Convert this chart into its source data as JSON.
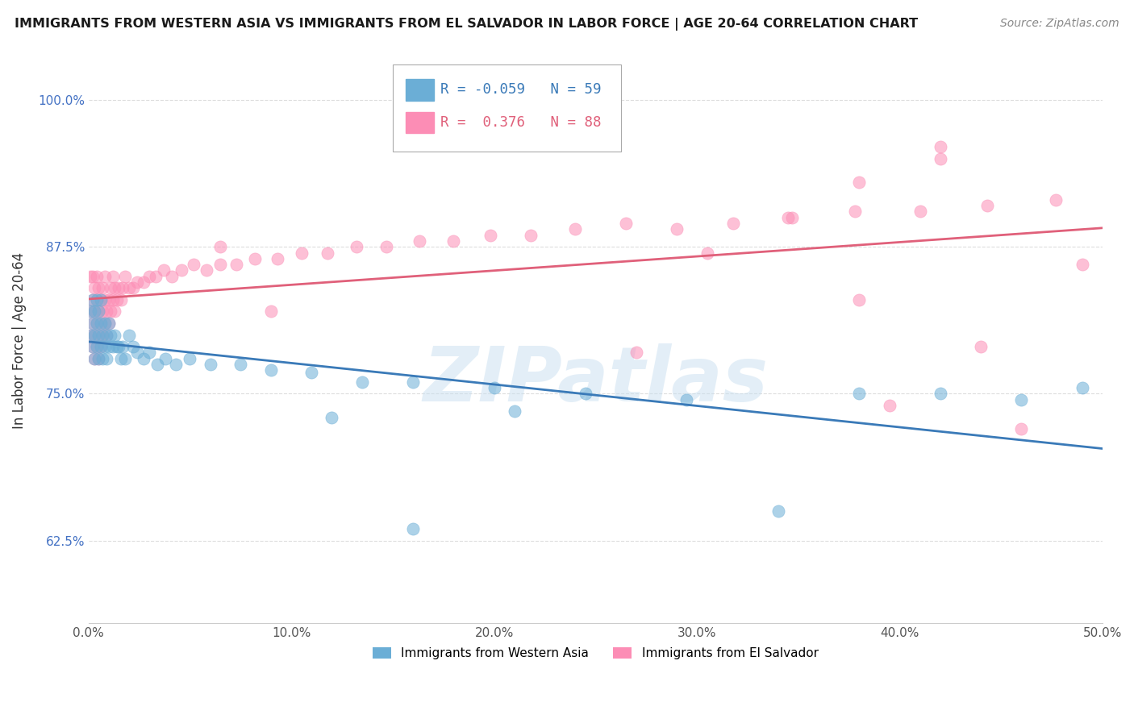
{
  "title": "IMMIGRANTS FROM WESTERN ASIA VS IMMIGRANTS FROM EL SALVADOR IN LABOR FORCE | AGE 20-64 CORRELATION CHART",
  "source": "Source: ZipAtlas.com",
  "ylabel": "In Labor Force | Age 20-64",
  "xlim": [
    0.0,
    0.5
  ],
  "ylim": [
    0.555,
    1.035
  ],
  "yticks": [
    0.625,
    0.75,
    0.875,
    1.0
  ],
  "ytick_labels": [
    "62.5%",
    "75.0%",
    "87.5%",
    "100.0%"
  ],
  "xticks": [
    0.0,
    0.1,
    0.2,
    0.3,
    0.4,
    0.5
  ],
  "xtick_labels": [
    "0.0%",
    "10.0%",
    "20.0%",
    "30.0%",
    "40.0%",
    "50.0%"
  ],
  "R_western_asia": -0.059,
  "N_western_asia": 59,
  "R_el_salvador": 0.376,
  "N_el_salvador": 88,
  "color_western_asia": "#6baed6",
  "color_el_salvador": "#fc8db5",
  "watermark": "ZIPatlas",
  "background_color": "#ffffff",
  "grid_color": "#dddddd",
  "wa_line_color": "#3a7ab8",
  "es_line_color": "#e0607a",
  "western_asia_x": [
    0.001,
    0.001,
    0.002,
    0.002,
    0.002,
    0.003,
    0.003,
    0.003,
    0.004,
    0.004,
    0.004,
    0.005,
    0.005,
    0.005,
    0.006,
    0.006,
    0.006,
    0.007,
    0.007,
    0.008,
    0.008,
    0.009,
    0.009,
    0.01,
    0.01,
    0.011,
    0.012,
    0.013,
    0.014,
    0.015,
    0.016,
    0.017,
    0.018,
    0.02,
    0.022,
    0.024,
    0.027,
    0.03,
    0.034,
    0.038,
    0.043,
    0.05,
    0.06,
    0.075,
    0.09,
    0.11,
    0.135,
    0.16,
    0.2,
    0.245,
    0.295,
    0.34,
    0.38,
    0.42,
    0.46,
    0.49,
    0.21,
    0.16,
    0.12
  ],
  "western_asia_y": [
    0.8,
    0.82,
    0.79,
    0.81,
    0.83,
    0.78,
    0.8,
    0.82,
    0.79,
    0.81,
    0.83,
    0.78,
    0.8,
    0.82,
    0.79,
    0.81,
    0.83,
    0.78,
    0.8,
    0.79,
    0.81,
    0.78,
    0.8,
    0.79,
    0.81,
    0.8,
    0.79,
    0.8,
    0.79,
    0.79,
    0.78,
    0.79,
    0.78,
    0.8,
    0.79,
    0.785,
    0.78,
    0.785,
    0.775,
    0.78,
    0.775,
    0.78,
    0.775,
    0.775,
    0.77,
    0.768,
    0.76,
    0.76,
    0.755,
    0.75,
    0.745,
    0.65,
    0.75,
    0.75,
    0.745,
    0.755,
    0.735,
    0.635,
    0.73
  ],
  "el_salvador_x": [
    0.001,
    0.001,
    0.001,
    0.002,
    0.002,
    0.002,
    0.002,
    0.003,
    0.003,
    0.003,
    0.003,
    0.004,
    0.004,
    0.004,
    0.004,
    0.005,
    0.005,
    0.005,
    0.005,
    0.006,
    0.006,
    0.006,
    0.007,
    0.007,
    0.007,
    0.008,
    0.008,
    0.008,
    0.009,
    0.009,
    0.01,
    0.01,
    0.011,
    0.011,
    0.012,
    0.012,
    0.013,
    0.013,
    0.014,
    0.015,
    0.016,
    0.017,
    0.018,
    0.02,
    0.022,
    0.024,
    0.027,
    0.03,
    0.033,
    0.037,
    0.041,
    0.046,
    0.052,
    0.058,
    0.065,
    0.073,
    0.082,
    0.093,
    0.105,
    0.118,
    0.132,
    0.147,
    0.163,
    0.18,
    0.198,
    0.218,
    0.24,
    0.265,
    0.29,
    0.318,
    0.347,
    0.378,
    0.41,
    0.443,
    0.477,
    0.44,
    0.42,
    0.395,
    0.38,
    0.065,
    0.09,
    0.27,
    0.305,
    0.345,
    0.38,
    0.42,
    0.46,
    0.49
  ],
  "el_salvador_y": [
    0.8,
    0.82,
    0.85,
    0.79,
    0.81,
    0.83,
    0.85,
    0.78,
    0.8,
    0.82,
    0.84,
    0.79,
    0.81,
    0.83,
    0.85,
    0.78,
    0.8,
    0.82,
    0.84,
    0.79,
    0.81,
    0.83,
    0.8,
    0.82,
    0.84,
    0.81,
    0.83,
    0.85,
    0.8,
    0.82,
    0.81,
    0.83,
    0.82,
    0.84,
    0.83,
    0.85,
    0.82,
    0.84,
    0.83,
    0.84,
    0.83,
    0.84,
    0.85,
    0.84,
    0.84,
    0.845,
    0.845,
    0.85,
    0.85,
    0.855,
    0.85,
    0.855,
    0.86,
    0.855,
    0.86,
    0.86,
    0.865,
    0.865,
    0.87,
    0.87,
    0.875,
    0.875,
    0.88,
    0.88,
    0.885,
    0.885,
    0.89,
    0.895,
    0.89,
    0.895,
    0.9,
    0.905,
    0.905,
    0.91,
    0.915,
    0.79,
    0.96,
    0.74,
    0.83,
    0.875,
    0.82,
    0.785,
    0.87,
    0.9,
    0.93,
    0.95,
    0.72,
    0.86
  ]
}
